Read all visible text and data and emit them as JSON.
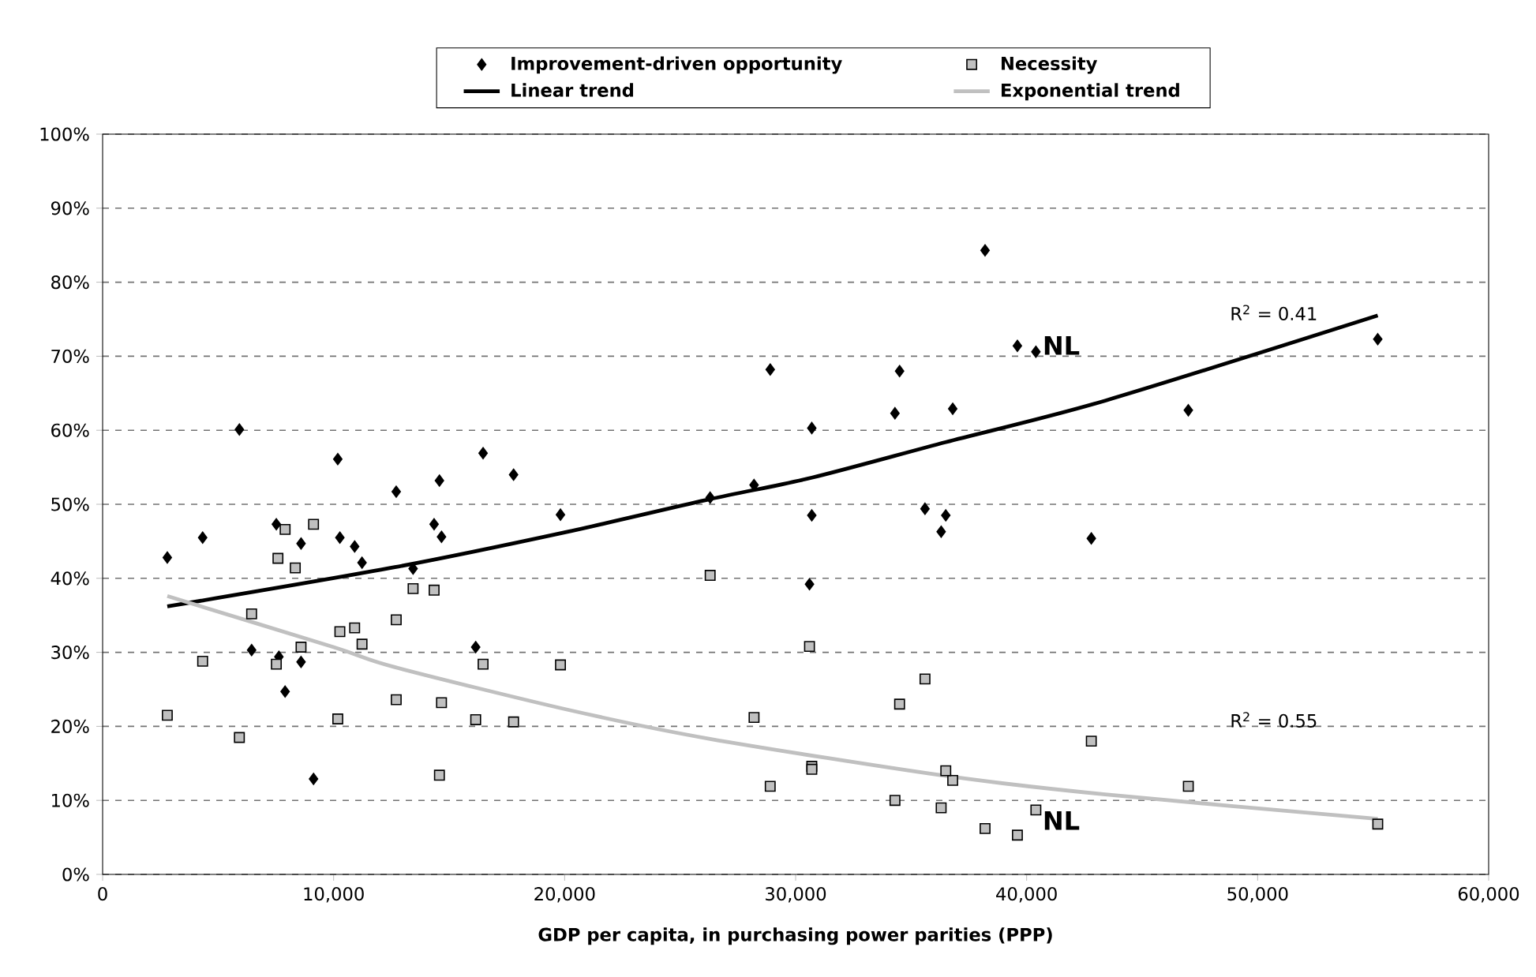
{
  "chart_data": {
    "type": "scatter",
    "xlabel": "GDP per capita, in purchasing power parities (PPP)",
    "xlim": [
      0,
      60000
    ],
    "xticks": [
      0,
      {
        "value": 10000,
        "label": "10,000"
      },
      {
        "value": 20000,
        "label": "20,000"
      },
      {
        "value": 30000,
        "label": "30,000"
      },
      {
        "value": 40000,
        "label": "40,000"
      },
      {
        "value": 50000,
        "label": "50,000"
      },
      {
        "value": 60000,
        "label": "60,000"
      }
    ],
    "ylim": [
      0,
      100
    ],
    "yticks": [
      {
        "value": 0,
        "label": "0%"
      },
      {
        "value": 10,
        "label": "10%"
      },
      {
        "value": 20,
        "label": "20%"
      },
      {
        "value": 30,
        "label": "30%"
      },
      {
        "value": 40,
        "label": "40%"
      },
      {
        "value": 50,
        "label": "50%"
      },
      {
        "value": 60,
        "label": "60%"
      },
      {
        "value": 70,
        "label": "70%"
      },
      {
        "value": 80,
        "label": "80%"
      },
      {
        "value": 90,
        "label": "90%"
      },
      {
        "value": 100,
        "label": "100%"
      }
    ],
    "grid": "y",
    "legend": "top",
    "series": [
      {
        "name": "Improvement-driven opportunity",
        "marker": "diamond",
        "color": "#000000",
        "x": [
          2800,
          4330,
          5920,
          6450,
          7520,
          7630,
          8590,
          7900,
          8590,
          9130,
          10180,
          10270,
          10910,
          11230,
          12710,
          13440,
          14350,
          14580,
          14670,
          16470,
          16150,
          17790,
          19820,
          26300,
          28200,
          28900,
          30700,
          30700,
          30600,
          34500,
          34300,
          36800,
          35600,
          36500,
          36300,
          42800,
          38200,
          39600,
          40400,
          55200,
          47000
        ],
        "values": [
          42.8,
          45.5,
          60.1,
          30.3,
          47.3,
          29.4,
          44.7,
          24.7,
          28.7,
          12.9,
          56.1,
          45.5,
          44.3,
          42.1,
          51.7,
          41.3,
          47.3,
          53.2,
          45.6,
          56.9,
          30.7,
          54.0,
          48.6,
          50.9,
          52.6,
          68.2,
          60.3,
          48.5,
          39.2,
          68.0,
          62.3,
          62.9,
          49.4,
          48.5,
          46.3,
          45.4,
          84.3,
          71.4,
          70.6,
          72.3,
          62.7
        ]
      },
      {
        "name": "Necessity",
        "marker": "square",
        "color": "#c0c0c0",
        "x": [
          2800,
          4330,
          5920,
          6450,
          7520,
          7590,
          7900,
          8340,
          8590,
          9130,
          10180,
          10270,
          10910,
          11230,
          12710,
          12710,
          13440,
          14350,
          14580,
          14670,
          16150,
          16470,
          17790,
          19820,
          26300,
          28200,
          28900,
          30600,
          30700,
          30700,
          34500,
          34300,
          35600,
          36800,
          36500,
          36300,
          42800,
          38200,
          39600,
          40400,
          55200,
          47000
        ],
        "values": [
          21.5,
          28.8,
          18.5,
          35.2,
          28.4,
          42.7,
          46.6,
          41.4,
          30.7,
          47.3,
          21.0,
          32.8,
          33.3,
          31.1,
          34.4,
          23.6,
          38.6,
          38.4,
          13.4,
          23.2,
          20.9,
          28.4,
          20.6,
          28.3,
          40.4,
          21.2,
          11.9,
          30.8,
          14.6,
          14.2,
          23.0,
          10.0,
          26.4,
          12.7,
          14.0,
          9.0,
          18.0,
          6.2,
          5.3,
          8.7,
          6.8,
          11.9
        ]
      },
      {
        "name": "Linear trend",
        "type": "line",
        "color": "#000000",
        "x": [
          2800,
          12650,
          20000,
          26300,
          30700,
          36500,
          43400,
          55200
        ],
        "values": [
          36.2,
          41.5,
          46.2,
          50.7,
          53.6,
          58.4,
          64.0,
          75.5
        ]
      },
      {
        "name": "Exponential trend",
        "type": "line",
        "color": "#c0c0c0",
        "x": [
          2800,
          10000,
          12650,
          20200,
          26300,
          36500,
          43400,
          55200
        ],
        "values": [
          37.6,
          30.7,
          28.0,
          22.2,
          18.3,
          13.3,
          10.8,
          7.5
        ]
      }
    ],
    "annotations": [
      "R$^{2}$ = 0.41",
      "R$^{2}$ = 0.55",
      {
        "text": "NL",
        "x": 40400,
        "y": 70.6
      },
      {
        "text": "NL",
        "x": 40400,
        "y": 8.7
      }
    ]
  }
}
